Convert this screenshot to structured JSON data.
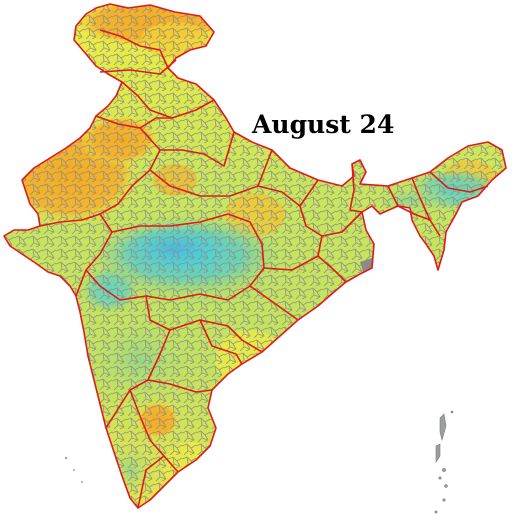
{
  "map": {
    "title": "August 24",
    "region": "India",
    "legend_visible": false,
    "boundary_colors": {
      "state_border": "#e01a1a",
      "district_border": "#8f8f8f",
      "unmapped_area": "#8a8a8a"
    },
    "fill_palette": {
      "orange": "#f7ac1e",
      "yellow": "#f2ee3b",
      "yellow_green": "#c9e65a",
      "green": "#9ed87a",
      "light_teal": "#6fd3b0",
      "cyan": "#44d4dc",
      "sky_blue": "#49b8e0"
    }
  }
}
